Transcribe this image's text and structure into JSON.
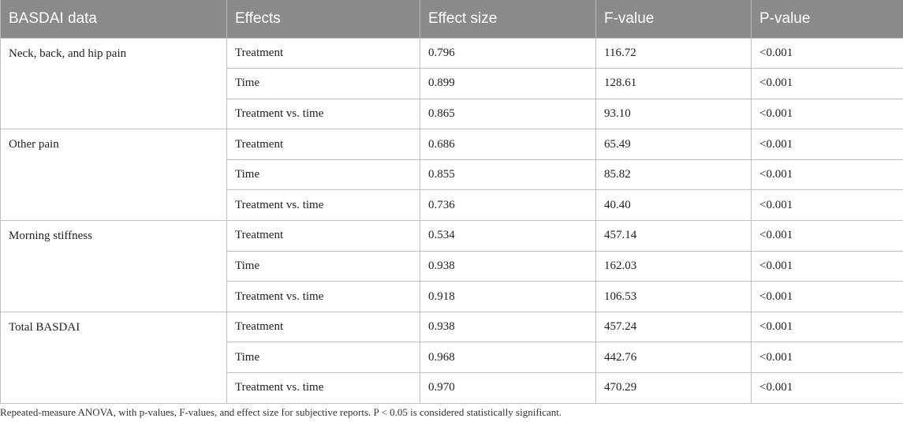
{
  "table": {
    "headers": [
      "BASDAI data",
      "Effects",
      "Effect size",
      "F-value",
      "P-value"
    ],
    "groups": [
      {
        "name": "Neck, back, and hip pain",
        "rows": [
          {
            "effect": "Treatment",
            "effect_size": "0.796",
            "f_value": "116.72",
            "p_value": "<0.001"
          },
          {
            "effect": "Time",
            "effect_size": "0.899",
            "f_value": "128.61",
            "p_value": "<0.001"
          },
          {
            "effect": "Treatment vs. time",
            "effect_size": "0.865",
            "f_value": "93.10",
            "p_value": "<0.001"
          }
        ]
      },
      {
        "name": "Other pain",
        "rows": [
          {
            "effect": "Treatment",
            "effect_size": "0.686",
            "f_value": "65.49",
            "p_value": "<0.001"
          },
          {
            "effect": "Time",
            "effect_size": "0.855",
            "f_value": "85.82",
            "p_value": "<0.001"
          },
          {
            "effect": "Treatment vs. time",
            "effect_size": "0.736",
            "f_value": "40.40",
            "p_value": "<0.001"
          }
        ]
      },
      {
        "name": "Morning stiffness",
        "rows": [
          {
            "effect": "Treatment",
            "effect_size": "0.534",
            "f_value": "457.14",
            "p_value": "<0.001"
          },
          {
            "effect": "Time",
            "effect_size": "0.938",
            "f_value": "162.03",
            "p_value": "<0.001"
          },
          {
            "effect": "Treatment vs. time",
            "effect_size": "0.918",
            "f_value": "106.53",
            "p_value": "<0.001"
          }
        ]
      },
      {
        "name": "Total BASDAI",
        "rows": [
          {
            "effect": "Treatment",
            "effect_size": "0.938",
            "f_value": "457.24",
            "p_value": "<0.001"
          },
          {
            "effect": "Time",
            "effect_size": "0.968",
            "f_value": "442.76",
            "p_value": "<0.001"
          },
          {
            "effect": "Treatment vs. time",
            "effect_size": "0.970",
            "f_value": "470.29",
            "p_value": "<0.001"
          }
        ]
      }
    ],
    "caption": "Repeated-measure ANOVA, with p-values, F-values, and effect size for subjective reports. P < 0.05 is considered statistically significant."
  },
  "colors": {
    "header_background": "#8a8a8a",
    "header_text": "#ffffff",
    "grid_line": "#bfbfbf"
  }
}
